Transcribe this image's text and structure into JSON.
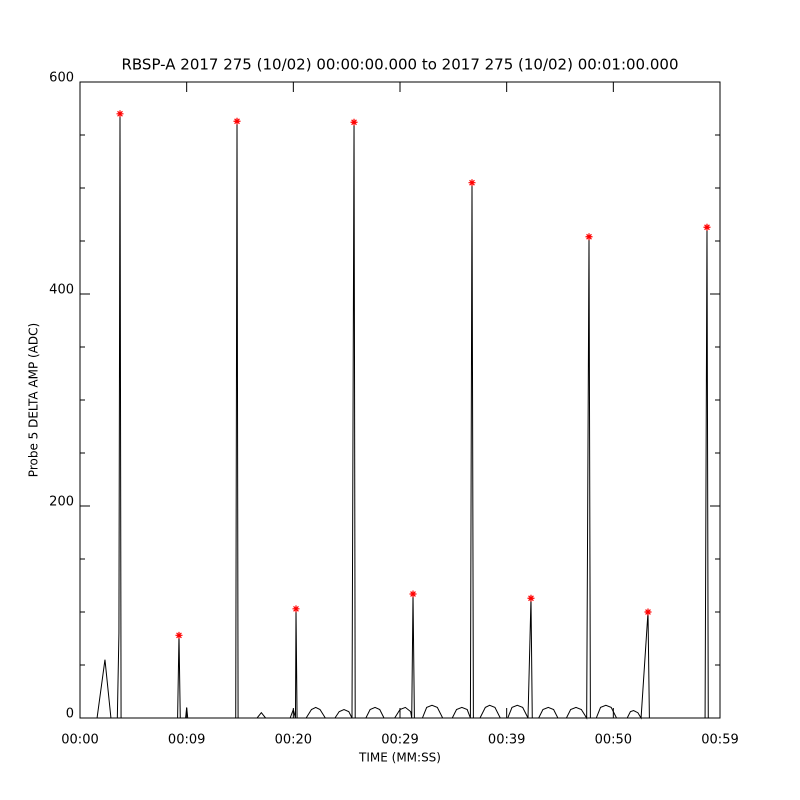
{
  "chart_data": {
    "type": "line",
    "title": "RBSP-A 2017 275 (10/02) 00:00:00.000 to 2017 275 (10/02) 00:01:00.000",
    "xlabel": "TIME (MM:SS)",
    "ylabel": "Probe 5 DELTA AMP (ADC)",
    "xlim": [
      0,
      60
    ],
    "ylim": [
      0,
      600
    ],
    "xticks": [
      {
        "value": 0,
        "label": "00:00"
      },
      {
        "value": 10,
        "label": "00:09"
      },
      {
        "value": 20,
        "label": "00:20"
      },
      {
        "value": 30,
        "label": "00:29"
      },
      {
        "value": 40,
        "label": "00:39"
      },
      {
        "value": 50,
        "label": "00:50"
      },
      {
        "value": 60,
        "label": "00:59"
      }
    ],
    "yticks": [
      0,
      200,
      400,
      600
    ],
    "yminor_ticks": [
      50,
      100,
      150,
      250,
      300,
      350,
      450,
      500,
      550
    ],
    "series": [
      {
        "color": "#000000",
        "marker": "none",
        "x": [
          0,
          1.6,
          2.34,
          2.9,
          3.5,
          3.65,
          3.75,
          3.85,
          9.15,
          9.28,
          9.4,
          9.9,
          10,
          10.1,
          14.6,
          14.72,
          14.82,
          16.6,
          17,
          17.4,
          19.7,
          20,
          20.2,
          20.25,
          20.35,
          21.2,
          21.7,
          22.1,
          22.5,
          23,
          23.9,
          24.3,
          24.75,
          25.2,
          25.5,
          25.69,
          25.8,
          26.8,
          27.2,
          27.66,
          28.1,
          28.5,
          29.5,
          30,
          30.5,
          31,
          31.1,
          31.22,
          31.35,
          32.1,
          32.5,
          33,
          33.5,
          34,
          34.9,
          35.3,
          35.8,
          36.3,
          36.6,
          36.75,
          36.88,
          37.5,
          38,
          38.4,
          38.9,
          39.4,
          40.1,
          40.5,
          41,
          41.5,
          42,
          42.28,
          42.4,
          43,
          43.4,
          43.9,
          44.4,
          44.8,
          45.6,
          46,
          46.5,
          47,
          47.5,
          47.72,
          47.85,
          48.4,
          48.8,
          49.3,
          49.8,
          50.3,
          51.3,
          51.6,
          51.9,
          52.3,
          52.6,
          53.25,
          53.38,
          58.6,
          58.78,
          58.9,
          60
        ],
        "y": [
          0,
          0,
          55,
          0,
          0,
          80,
          570,
          0,
          0,
          78,
          0,
          0,
          10,
          0,
          0,
          563,
          0,
          0,
          5,
          0,
          0,
          8,
          0,
          103,
          0,
          0,
          8,
          10,
          8,
          0,
          0,
          6,
          8,
          6,
          0,
          562,
          0,
          0,
          8,
          10,
          8,
          0,
          0,
          8,
          10,
          6,
          0,
          117,
          0,
          0,
          10,
          12,
          10,
          0,
          0,
          8,
          10,
          8,
          0,
          505,
          0,
          0,
          10,
          12,
          10,
          0,
          0,
          10,
          12,
          10,
          0,
          113,
          0,
          0,
          8,
          10,
          8,
          0,
          0,
          8,
          10,
          8,
          0,
          454,
          0,
          0,
          10,
          12,
          10,
          0,
          0,
          6,
          7,
          5,
          0,
          100,
          0,
          0,
          463,
          0,
          0
        ]
      },
      {
        "color": "#ff0000",
        "marker": "asterisk",
        "x": [
          3.75,
          9.28,
          14.72,
          20.25,
          25.69,
          31.22,
          36.75,
          42.28,
          47.72,
          53.25,
          58.78
        ],
        "y": [
          570,
          78,
          563,
          103,
          562,
          117,
          505,
          113,
          454,
          100,
          463
        ]
      }
    ]
  }
}
